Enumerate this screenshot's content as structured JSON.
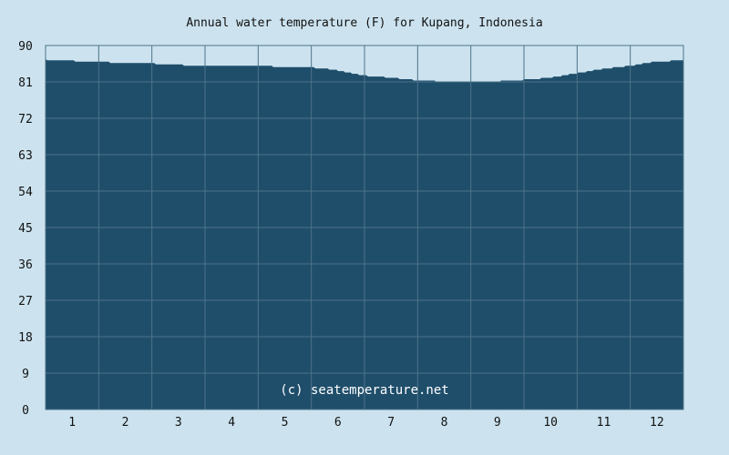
{
  "chart_data": {
    "type": "area",
    "title": "Annual water temperature (F) for Kupang, Indonesia",
    "watermark": "(c) seatemperature.net",
    "xlabel": "",
    "ylabel": "",
    "ylim": [
      0,
      90
    ],
    "y_ticks": [
      0,
      9,
      18,
      27,
      36,
      45,
      54,
      63,
      72,
      81,
      90
    ],
    "x_tick_labels": [
      "1",
      "2",
      "3",
      "4",
      "5",
      "6",
      "7",
      "8",
      "9",
      "10",
      "11",
      "12"
    ],
    "grid": true,
    "x": [
      1,
      15,
      32,
      46,
      60,
      74,
      91,
      105,
      121,
      135,
      152,
      166,
      182,
      196,
      213,
      227,
      244,
      258,
      274,
      288,
      305,
      319,
      335,
      349,
      365
    ],
    "values": [
      86.5,
      86.2,
      86.0,
      85.6,
      85.6,
      85.2,
      85.1,
      85.0,
      84.9,
      84.8,
      84.6,
      84.0,
      82.6,
      82.1,
      81.4,
      81.1,
      81.1,
      81.1,
      81.5,
      82.0,
      83.2,
      84.2,
      85.0,
      86.0,
      86.3
    ],
    "colors": {
      "fill": "#1f4e6b",
      "grid": "#4d7389",
      "background": "#cce3ef",
      "axis_text": "#111111"
    }
  }
}
